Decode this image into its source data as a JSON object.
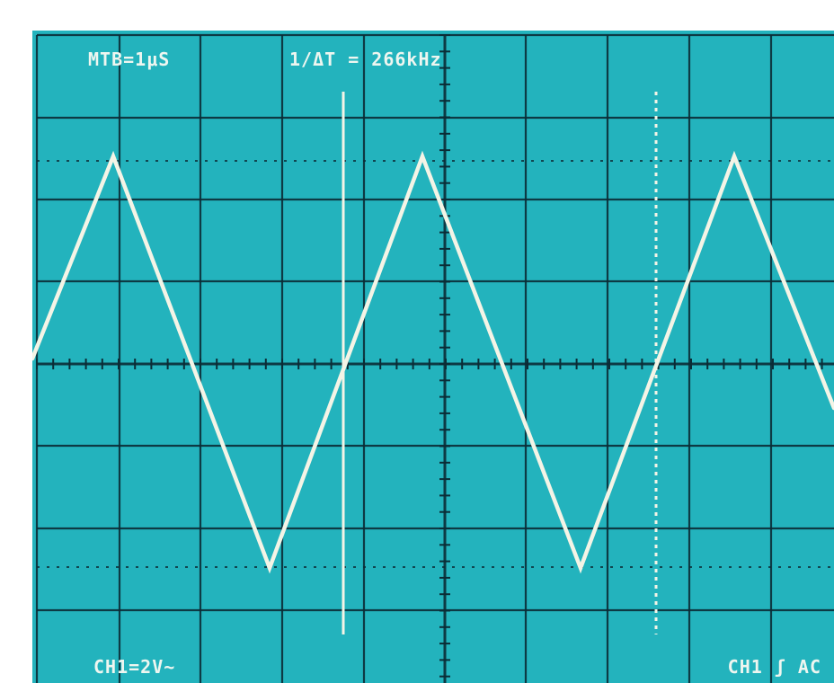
{
  "screen": {
    "background_color": "#23b3bd",
    "trace_color": "#f4f4e6",
    "grid_color": "#0b2c36"
  },
  "readouts": {
    "timebase": "MTB=1μS",
    "frequency": "1/ΔT = 266kHz",
    "channel_scale": "CH1=2V~",
    "trigger": "CH1 ʃ AC"
  },
  "cursors": {
    "solid_cursor": "time-cursor-1",
    "dotted_cursor": "time-cursor-2"
  }
}
